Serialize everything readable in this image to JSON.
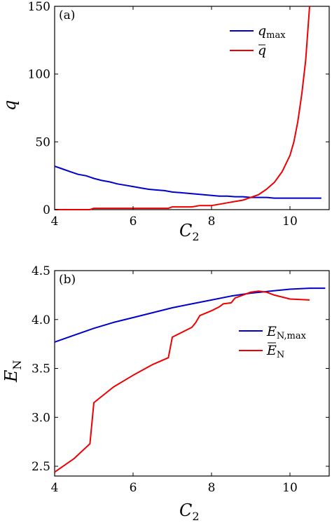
{
  "chart_data": [
    {
      "panel_label": "(a)",
      "type": "line",
      "xlabel": "C",
      "xlabel_sub": "2",
      "ylabel": "q",
      "xlim": [
        4,
        11
      ],
      "ylim": [
        0,
        150
      ],
      "xticks": [
        4,
        6,
        8,
        10
      ],
      "yticks": [
        0,
        50,
        100,
        150
      ],
      "grid": false,
      "legend_position": "top-right",
      "series": [
        {
          "name": "q",
          "name_sub": "max",
          "color": "#0000cc",
          "x": [
            4.0,
            4.2,
            4.4,
            4.6,
            4.8,
            5.0,
            5.2,
            5.4,
            5.6,
            5.8,
            6.0,
            6.2,
            6.4,
            6.6,
            6.8,
            7.0,
            7.2,
            7.4,
            7.6,
            7.8,
            8.0,
            8.2,
            8.4,
            8.6,
            8.8,
            9.0,
            9.2,
            9.4,
            9.6,
            9.8,
            10.0,
            10.4,
            10.8
          ],
          "y": [
            32,
            30,
            28,
            26,
            25,
            23,
            21.5,
            20.5,
            19,
            18,
            17,
            16,
            15,
            14.5,
            14,
            13,
            12.5,
            12,
            11.5,
            11,
            10.5,
            10,
            10,
            9.5,
            9.5,
            9,
            9,
            9,
            8.5,
            8.5,
            8.5,
            8.5,
            8.5
          ]
        },
        {
          "name": "q",
          "name_overline": true,
          "color": "#ee0000",
          "x": [
            4.0,
            4.5,
            4.9,
            5.0,
            5.5,
            6.0,
            6.5,
            6.9,
            7.0,
            7.5,
            7.7,
            8.0,
            8.2,
            8.4,
            8.6,
            8.8,
            9.0,
            9.2,
            9.4,
            9.6,
            9.8,
            10.0,
            10.1,
            10.2,
            10.3,
            10.4,
            10.5
          ],
          "y": [
            0,
            0,
            0,
            1,
            1,
            1,
            1,
            1,
            2,
            2,
            3,
            3,
            4,
            5,
            6,
            7,
            9,
            11,
            15,
            20,
            28,
            40,
            50,
            65,
            85,
            110,
            150
          ]
        }
      ]
    },
    {
      "panel_label": "(b)",
      "type": "line",
      "xlabel": "C",
      "xlabel_sub": "2",
      "ylabel": "E",
      "ylabel_sub": "N",
      "xlim": [
        4,
        11
      ],
      "ylim": [
        2.4,
        4.5
      ],
      "xticks": [
        4,
        6,
        8,
        10
      ],
      "yticks": [
        2.5,
        3.0,
        3.5,
        4.0,
        4.5
      ],
      "ytick_labels": [
        "2.5",
        "3.0",
        "3.5",
        "4.0",
        "4.5"
      ],
      "grid": false,
      "legend_position": "center-right",
      "series": [
        {
          "name": "E",
          "name_sub": "N,max",
          "color": "#0000cc",
          "x": [
            4.0,
            4.5,
            5.0,
            5.5,
            6.0,
            6.5,
            7.0,
            7.5,
            8.0,
            8.5,
            9.0,
            9.5,
            10.0,
            10.5,
            10.9
          ],
          "y": [
            3.77,
            3.84,
            3.91,
            3.97,
            4.02,
            4.07,
            4.12,
            4.16,
            4.2,
            4.24,
            4.27,
            4.29,
            4.31,
            4.32,
            4.32
          ]
        },
        {
          "name": "E",
          "name_sub": "N",
          "name_overline": true,
          "color": "#ee0000",
          "x": [
            4.0,
            4.5,
            4.9,
            5.0,
            5.5,
            6.0,
            6.5,
            6.9,
            7.0,
            7.5,
            7.6,
            7.7,
            8.0,
            8.2,
            8.3,
            8.5,
            8.6,
            8.8,
            9.0,
            9.2,
            9.4,
            9.6,
            10.0,
            10.5
          ],
          "y": [
            2.44,
            2.58,
            2.73,
            3.15,
            3.31,
            3.43,
            3.54,
            3.61,
            3.82,
            3.92,
            3.97,
            4.04,
            4.09,
            4.13,
            4.16,
            4.17,
            4.22,
            4.25,
            4.28,
            4.29,
            4.28,
            4.25,
            4.21,
            4.2
          ]
        }
      ]
    }
  ]
}
